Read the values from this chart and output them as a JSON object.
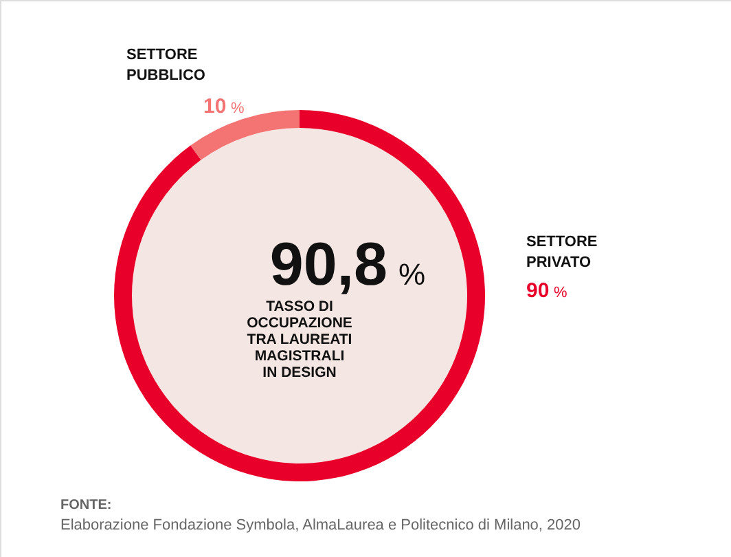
{
  "chart_data": {
    "type": "donut",
    "categories": [
      "SETTORE PRIVATO",
      "SETTORE PUBBLICO"
    ],
    "values": [
      90,
      10
    ],
    "colors": [
      "#e8002a",
      "#f47373"
    ],
    "value_labels": [
      "90 %",
      "10 %"
    ],
    "annotations": [
      "90,8 %",
      "TASSO DI OCCUPAZIONE TRA LAUREATI MAGISTRALI IN DESIGN",
      "FONTE:",
      "Elaborazione Fondazione Symbola, AlmaLaurea e Politecnico di Milano, 2020"
    ]
  }
}
